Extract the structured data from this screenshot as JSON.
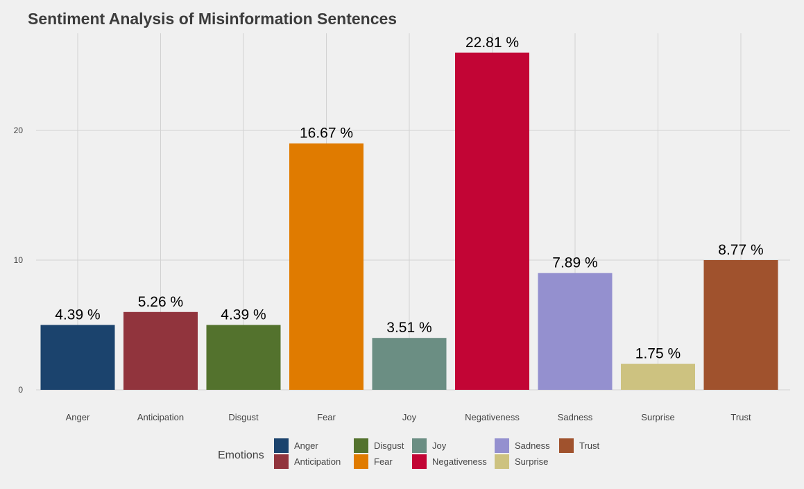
{
  "chart_data": {
    "type": "bar",
    "title": "Sentiment Analysis of Misinformation Sentences",
    "xlabel": "",
    "ylabel": "",
    "categories": [
      "Anger",
      "Anticipation",
      "Disgust",
      "Fear",
      "Joy",
      "Negativeness",
      "Sadness",
      "Surprise",
      "Trust"
    ],
    "values": [
      5,
      6,
      5,
      19,
      4,
      26,
      9,
      2,
      10
    ],
    "value_labels": [
      "4.39 %",
      "5.26 %",
      "4.39 %",
      "16.67 %",
      "3.51 %",
      "22.81 %",
      "7.89 %",
      "1.75 %",
      "8.77 %"
    ],
    "colors": [
      "#1b436d",
      "#91343d",
      "#53722d",
      "#e07b00",
      "#6b8e83",
      "#c20535",
      "#9490cf",
      "#cdc280",
      "#a0522d"
    ],
    "ylim": [
      0,
      26.5
    ],
    "yticks": [
      0,
      10,
      20
    ],
    "grid": true,
    "legend": {
      "title": "Emotions",
      "position": "bottom",
      "entries": [
        "Anger",
        "Anticipation",
        "Disgust",
        "Fear",
        "Joy",
        "Negativeness",
        "Sadness",
        "Surprise",
        "Trust"
      ]
    }
  }
}
